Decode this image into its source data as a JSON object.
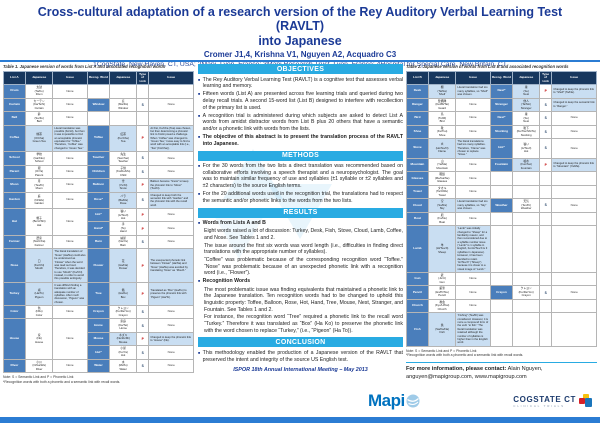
{
  "header": {
    "title_line1": "Cross-cultural adaptation of a research version of the Rey Auditory Verbal Learning Test (RAVLT)",
    "title_line2": "into Japanese",
    "authors": "Cromer J1,4, Krishna V1, Nguyen A2, Acquadro C3",
    "affiliations": "1CogState, New Haven, CT, USA; 2Mapi, Lyon, France; 3Mapi Research Trust, Lyon, France; 4Hospital for Special Care, New Britain, CT"
  },
  "sections": [
    {
      "id": "objectives",
      "label": "OBJECTIVES",
      "items": [
        {
          "t": "bullet",
          "text": "The Rey Auditory Verbal Learning Test (RAVLT) is a cognitive test that assesses verbal learning and memory."
        },
        {
          "t": "bullet",
          "text": "Fifteen words (List A) are presented across five learning trials and queried during two delay recall trials. A second 15-word list (List B) designed to interfere with recollection of the primary list is used."
        },
        {
          "t": "bullet",
          "text": "A recognition trial is administered during which subjects are asked to detect List A words from amidst distractor words from List B plus 20 others that have a semantic and/or a phonetic link with words from the lists."
        },
        {
          "t": "bullet-bold",
          "text": "The objective of this abstract is to present the translation process of the RAVLT into Japanese."
        }
      ]
    },
    {
      "id": "methods",
      "label": "METHODS",
      "items": [
        {
          "t": "bullet",
          "text": "For the 30 words from the two lists a direct translation was recommended based on collaborative efforts involving a speech therapist and a neuropsychologist. The goal was to maintain similar frequency of use and syllables (±1 syllable or ±2 syllables and ±2 characters) to the source English terms."
        },
        {
          "t": "bullet",
          "text": "For the 20 additional words used in the recognition trial, the translations had to respect the semantic and/or phonetic links to the words from the two lists."
        }
      ]
    },
    {
      "id": "results",
      "label": "RESULTS",
      "items": [
        {
          "t": "bullet-bold",
          "text": "Words from Lists A and B"
        },
        {
          "t": "para",
          "text": "Eight words raised a lot of discussion: Turkey, Desk, Fish, Stove, Cloud, Lamb, Coffee, and Nose. See Tables 1 and 2."
        },
        {
          "t": "para",
          "text": "The issue around the first six words was word length (i.e., difficulties in finding direct translations with the appropriate number of syllables)."
        },
        {
          "t": "para",
          "text": "“Coffee” was problematic because of the corresponding recognition word “Toffee.” “Nose” was problematic because of an unexpected phonetic link with a recognition word (i.e., “Flower”)."
        },
        {
          "t": "bullet-bold",
          "text": "Recognition Words"
        },
        {
          "t": "para",
          "text": "The most problematic issue was finding equivalents that maintained a phonetic link to the Japanese translation. Ten recognition words had to be changed to uphold this linguistic property: Toffee, Balloon, Rose, Hot, Hand, Tree, Mouse, Nest, Stranger, and Fountain. See Tables 1 and 2."
        },
        {
          "t": "para",
          "text": "For instance, the recognition word “Tree” required a phonetic link to the recall word “Turkey.” Therefore it was translated as “Box” (Ha Ko) to preserve the phonetic link with the word chosen to replace “Turkey,” (i.e., “Pigeon” (Ha To))."
        }
      ]
    },
    {
      "id": "conclusion",
      "label": "CONCLUSION",
      "items": [
        {
          "t": "bullet",
          "text": "This methodology enabled the production of a Japanese version of the RAVLT that preserved the intent and integrity of the source US English test."
        }
      ]
    }
  ],
  "table1": {
    "title": "Table 1. Japanese version of words from List A and associated recognition words",
    "columns": [
      "List A",
      "Japanese",
      "Issue",
      "Recog. Word",
      "Japanese",
      "Type of Link",
      "Issue"
    ],
    "note1": "Note: S = Semantic Link and P = Phonetic Link",
    "note2": "*Recognition words with both a phonetic and a semantic link with recall words.",
    "rows": [
      {
        "word": "Drum",
        "jp": [
          "太鼓",
          "(Ta/Ko)",
          "Drum"
        ],
        "issue": "None",
        "recog": []
      },
      {
        "word": "Curtain",
        "jp": [
          "カーテン",
          "(Ka/Te/N)",
          "Curtain"
        ],
        "issue": "None",
        "recog": [
          {
            "word": "Window",
            "jp": [
              "窓",
              "(Ma/Do)",
              "Window"
            ],
            "type": "S",
            "note": "None"
          }
        ]
      },
      {
        "word": "Bell",
        "jp": [
          "鈴",
          "(Su/Zu)",
          "Bell"
        ],
        "issue": "None",
        "recog": []
      },
      {
        "word": "Coffee",
        "jp": [
          "緑茶",
          "(O/Cha)",
          "Green Tea"
        ],
        "hl": true,
        "issue": "Literal translation was possible (Ko/Hi), but then it was impossible to find an acceptable phonetic equivalent for “Toffee.” Therefore, “Coffee” was changed to “Green Tea.”",
        "recog": [
          {
            "word": "Toffee",
            "jp": [
              "紅茶",
              "(Ko/Cha)",
              "Tea"
            ],
            "type": "P",
            "hl": true,
            "note": "At first, Ko/Cha (Tea) was chosen, but then determining a phonetic link to Ko/Hi posed a challenge. When “Coffee” was changed to “Green Tea,” it was easy to find a word with an acceptable link (i.e., “Tea” (Ko/Cha))."
          }
        ]
      },
      {
        "word": "School",
        "jp": [
          "学校",
          "(Ga/Kko)",
          "School"
        ],
        "issue": "None",
        "recog": [
          {
            "word": "Teacher",
            "jp": [
              "先生",
              "(Sen/Sei)",
              "Teacher"
            ],
            "type": "S",
            "note": "None"
          }
        ]
      },
      {
        "word": "Parent",
        "jp": [
          "親",
          "(O/Ya)",
          "Parent"
        ],
        "issue": "None",
        "recog": [
          {
            "word": "Children",
            "jp": [
              "子供",
              "(Ko/Do/Mo)",
              "Child"
            ],
            "type": "S",
            "note": "None"
          }
        ]
      },
      {
        "word": "Moon",
        "jp": [
          "月",
          "(Tsu/Ki)",
          "Moon"
        ],
        "issue": "None",
        "recog": [
          {
            "word": "Balloon",
            "jp": [
              "雪",
              "(Yu/Ki)",
              "Snow"
            ],
            "type": "P",
            "hl": true,
            "note": "Balloon became “Snow” to keep the phonetic link to “Moon” (Tsu/Ki)."
          }
        ]
      },
      {
        "word": "Garden",
        "jp": [
          "庭",
          "(Ni/Wa)",
          "Garden"
        ],
        "issue": "None",
        "recog": [
          {
            "word": "Rose*",
            "jp": [
              "バラ",
              "(Ba/Ra)",
              "Rose"
            ],
            "type": "S",
            "hl": true,
            "note": "Changed to keep both the semantic link with “Garden” and the phonetic link with the recall word."
          }
        ]
      },
      {
        "word": "Hat",
        "jp": [
          "帽子",
          "(Bo/U/Shi)",
          "Hat"
        ],
        "issue": "None",
        "recog": [
          {
            "word": "Hot*",
            "jp": [
              "暑い",
              "(A/Tsu/I)",
              "Hot"
            ],
            "type": "P",
            "note": "None"
          },
          {
            "word": "Hand*",
            "jp": [
              "手",
              "(Te)",
              "Hand"
            ],
            "type": "P",
            "note": "None"
          }
        ]
      },
      {
        "word": "Farmer",
        "jp": [
          "農家",
          "(No/U/Ka)",
          "Farmer"
        ],
        "issue": "None",
        "recog": [
          {
            "word": "Barn",
            "jp": [
              "納屋",
              "(Na/Ya)",
              "Barn"
            ],
            "type": "S",
            "note": "None"
          }
        ]
      },
      {
        "word": "Nose",
        "jp": [
          "口",
          "(Ku/Chi)",
          "Mouth"
        ],
        "hl": true,
        "issue": "The literal translation of “Nose” (Ha/Na) could also be understood as “Flower” when the word was read out loud. Therefore, it was decided to use “Mouth” (Ku/Chi) instead, in order to avoid this possible ambiguity.",
        "recog": [
          {
            "word": "Flower",
            "jp": [
              "花",
              "(Ha/Na)",
              "Flower"
            ],
            "type": "P",
            "hl": true,
            "note": "The unexpected phonetic link between “Flower” (Ha/Na) and “Nose” (Ha/Na) was avoided by translating “Nose” as “Mouth.”"
          }
        ]
      },
      {
        "word": "Turkey",
        "jp": [
          "鳩",
          "(Ha/To)",
          "Pigeon"
        ],
        "hl": true,
        "issue": "It was difficult finding a translation with an adequate number of syllables. After much discussion, “Pigeon” was chosen.",
        "recog": [
          {
            "word": "Tree",
            "jp": [
              "箱",
              "(Ha/Ko)",
              "Box"
            ],
            "type": "P",
            "hl": true,
            "note": "Translated as “Box” (Ha/Ko) to preserve the phonetic link with “Pigeon” (Ha/To)."
          }
        ]
      },
      {
        "word": "Color",
        "jp": [
          "色",
          "(I/Ro)",
          "Color"
        ],
        "issue": "None",
        "recog": [
          {
            "word": "Crayon",
            "jp": [
              "クレヨン",
              "(Ku/Re/Yon)",
              "Crayon"
            ],
            "type": "S",
            "note": "None"
          }
        ]
      },
      {
        "word": "House",
        "jp": [
          "家",
          "(I/E)",
          "House"
        ],
        "issue": "None",
        "recog": [
          {
            "word": "Home",
            "jp": [
              "家庭",
              "(Ka/Tei)",
              "Home"
            ],
            "type": "S",
            "note": "None"
          },
          {
            "word": "Mouse",
            "jp": [
              "ネズミ",
              "(Ne/Zu/Mi)",
              "Mouse"
            ],
            "type": "P",
            "hl": true,
            "note": "Changed to keep the phonetic link to “House” (I/E)."
          },
          {
            "word": "Hut*",
            "jp": [
              "小屋",
              "(Ko/Ya)",
              "Hut"
            ],
            "type": "S",
            "note": "None"
          }
        ]
      },
      {
        "word": "River",
        "jp": [
          "小川",
          "(O/Ga/Wa)",
          "River"
        ],
        "issue": "None",
        "recog": [
          {
            "word": "Water",
            "jp": [
              "水",
              "(Mi/Zu)",
              "Water"
            ],
            "type": "S",
            "note": "None"
          }
        ]
      }
    ]
  },
  "table2": {
    "title": "Table 2. Japanese version of words from List B and associated recognition words",
    "columns": [
      "List B",
      "Japanese",
      "Issue",
      "Recog. Word",
      "Japanese",
      "Type of Link",
      "Issue"
    ],
    "note1": "Note: S = Semantic Link and P = Phonetic Link",
    "note2": "*Recognition words with both a phonetic and a semantic link with recall words.",
    "rows": [
      {
        "word": "Desk",
        "jp": [
          "棚",
          "(Ta/Na)",
          "Shelf"
        ],
        "hl": true,
        "issue": "Literal translation had too many syllables, so “Shelf” was chosen.",
        "recog": [
          {
            "word": "Nest*",
            "jp": [
              "巣",
              "(Su)",
              "Nest"
            ],
            "type": "P",
            "hl": true,
            "note": "Changed to keep the phonetic link to “Shelf” (Ta/Na)."
          }
        ]
      },
      {
        "word": "Ranger",
        "jp": [
          "警備隊",
          "(Kei/Bi/Tai)",
          "Guard"
        ],
        "issue": "None",
        "recog": [
          {
            "word": "Stranger",
            "jp": [
              "他人",
              "(Ta/Nin)",
              "Stranger"
            ],
            "type": "S",
            "hl": true,
            "note": "Changed to keep the semantic link to “Ranger.”"
          }
        ]
      },
      {
        "word": "Bird",
        "jp": [
          "鳥",
          "(To/Ri)",
          "Bird"
        ],
        "issue": "None",
        "recog": [
          {
            "word": "Nest*",
            "jp": [
              "巣",
              "(Su)",
              "Nest"
            ],
            "type": "S",
            "note": "None"
          }
        ]
      },
      {
        "word": "Shoe",
        "jp": [
          "靴",
          "(Ku/Tsu)",
          "Shoe"
        ],
        "issue": "None",
        "recog": [
          {
            "word": "Stocking",
            "jp": [
              "靴下",
              "(Ku/Tsu/Shi/Ta)",
              "Stocking"
            ],
            "type": "S",
            "note": "None"
          }
        ]
      },
      {
        "word": "Stove",
        "jp": [
          "炎",
          "(Ho/No/O)",
          "Flame"
        ],
        "hl": true,
        "issue": "The literal translations had too many syllables. Therefore, “Flame” was chosen to replace “Stove.”",
        "recog": [
          {
            "word": "Hot*",
            "jp": [
              "暑い",
              "(A/Tsu/I)",
              "Hot"
            ],
            "type": "S",
            "note": "None"
          }
        ]
      },
      {
        "word": "Mountain",
        "jp": [
          "山",
          "(Ya/Ma)",
          "Mountain"
        ],
        "issue": "None",
        "recog": [
          {
            "word": "Fountain",
            "jp": [
              "噴水",
              "(Fun/Sui)",
              "Fountain"
            ],
            "type": "P",
            "hl": true,
            "note": "Changed to keep the phonetic link to “Mountain” (Ya/Ma)."
          }
        ]
      },
      {
        "word": "Glasses",
        "jp": [
          "眼鏡",
          "(Me/Ga/Ne)",
          "Glasses"
        ],
        "issue": "None",
        "recog": []
      },
      {
        "word": "Towel",
        "jp": [
          "タオル",
          "(Ta/O/Ru)",
          "Towel"
        ],
        "issue": "None",
        "recog": []
      },
      {
        "word": "Cloud",
        "jp": [
          "空",
          "(So/Ra)",
          "Sky"
        ],
        "hl": true,
        "issue": "Literal translation had too many syllables, so “Sky” was chosen.",
        "recog": [
          {
            "word": "Weather",
            "jp": [
              "天気",
              "(Ten/Ki)",
              "Weather"
            ],
            "type": "S",
            "note": "None"
          }
        ]
      },
      {
        "word": "Boat",
        "jp": [
          "船",
          "(Fu/Ne)",
          "Boat"
        ],
        "issue": "None",
        "recog": []
      },
      {
        "word": "Lamb",
        "jp": [
          "羊",
          "(Hi/Tsu/Ji)",
          "Sheep"
        ],
        "hl": true,
        "issue": "“Lamb” was initially changed to “Sheep” for a familiarity reason, and then reconsidered due to a syllable number issue (“Lamb” is 1 syllable in English, but Hi/Tsu/Ji is 3 syllables in Japanese). However, it has been decided to retain “Hi/Tsu/Ji” (“Sheep”) because it is closer to a visual image of “Lamb.”",
        "recog": []
      },
      {
        "word": "Gun",
        "jp": [
          "銃",
          "(Ju/U)",
          "Gun"
        ],
        "issue": "None",
        "recog": []
      },
      {
        "word": "Pencil",
        "jp": [
          "鉛筆",
          "(En/Pi/Tsu)",
          "Pencil"
        ],
        "issue": "None",
        "recog": [
          {
            "word": "Crayon",
            "jp": [
              "クレヨン",
              "(Ku/Re/Yon)",
              "Crayon"
            ],
            "type": "S",
            "note": "None"
          }
        ]
      },
      {
        "word": "Church",
        "jp": [
          "教会",
          "(Kyo/U/Kai)",
          "Church"
        ],
        "issue": "None",
        "recog": []
      },
      {
        "word": "Fish",
        "jp": [
          "魚",
          "(Sa/Ka/Na)",
          "Fish"
        ],
        "hl": true,
        "issue": "“Fishing” (Tsu/Ri) was considered. However, it is more a compound form of the verb “to fish.” The literal translation was retained although the number of syllables is higher than in the English word.",
        "recog": []
      }
    ]
  },
  "footer": {
    "meeting": "ISPOR 18th Annual International Meeting – May 2013",
    "contact_bold": "For more information, please contact:",
    "contact_rest": "Alain Nguyen, anguyen@mapigroup.com, www.mapigroup.com",
    "logos": {
      "mapi": "Mapi",
      "cogstate": "COGSTATE CT",
      "cogstate_sub": "CLINICAL TRIALS"
    }
  },
  "colors": {
    "title_blue": "#1b3a96",
    "section_bar": "#29abe2",
    "table_header": "#17375e",
    "word_cell": "#4a7ebb",
    "highlight_cell": "#c9def2",
    "phonetic_red": "#c00000",
    "bottom_bar": "#2b7cd3"
  }
}
